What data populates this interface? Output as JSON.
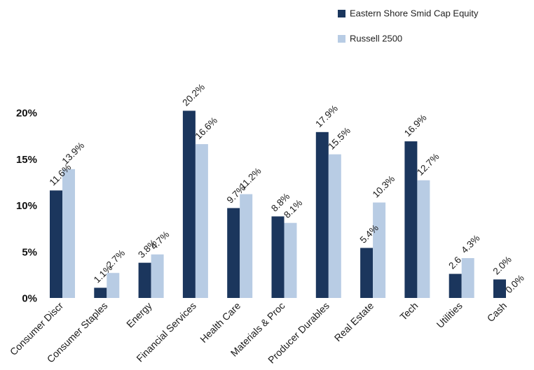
{
  "chart_data": {
    "type": "bar",
    "categories": [
      "Consumer Discr",
      "Consumer Staples",
      "Energy",
      "Financial Services",
      "Health Care",
      "Materials & Proc",
      "Producer Durables",
      "Real Estate",
      "Tech",
      "Utilities",
      "Cash"
    ],
    "series": [
      {
        "name": "Eastern Shore Smid Cap Equity",
        "color": "#1b365d",
        "values": [
          11.6,
          1.1,
          3.8,
          20.2,
          9.7,
          8.8,
          17.9,
          5.4,
          16.9,
          2.6,
          2.0
        ],
        "labels": [
          "11.6%",
          "1.1%",
          "3.8%",
          "20.2%",
          "9.7%",
          "8.8%",
          "17.9%",
          "5.4%",
          "16.9%",
          "2.6",
          "2.0%"
        ]
      },
      {
        "name": "Russell 2500",
        "color": "#b8cce4",
        "values": [
          13.9,
          2.7,
          4.7,
          16.6,
          11.2,
          8.1,
          15.5,
          10.3,
          12.7,
          4.3,
          0.0
        ],
        "labels": [
          "13.9%",
          "2.7%",
          "4.7%",
          "16.6%",
          "11.2%",
          "8.1%",
          "15.5%",
          "10.3%",
          "12.7%",
          "4.3%",
          "0.0%"
        ]
      }
    ],
    "yticks": [
      "0%",
      "5%",
      "10%",
      "15%",
      "20%"
    ],
    "ytick_values": [
      0,
      5,
      10,
      15,
      20
    ],
    "ylim": [
      0,
      20
    ],
    "grid": false,
    "legend_position": "top-right"
  }
}
